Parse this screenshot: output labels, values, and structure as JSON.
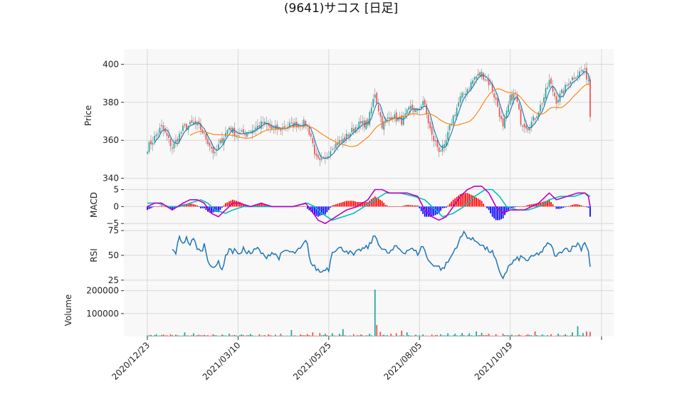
{
  "title": "(9641)サコス [日足]",
  "colors": {
    "up": "#26a69a",
    "down": "#ef5350",
    "ma_short": "#1f77b4",
    "ma_long": "#ff7f0e",
    "macd": "#c000c0",
    "signal": "#00c0c0",
    "hist_up": "#ff0000",
    "hist_down": "#0000ff",
    "rsi": "#1f77b4",
    "volume_up": "#26a69a",
    "volume_down": "#ef5350",
    "panel_bg": "#f8f8f8",
    "grid": "#d8d8d8"
  },
  "chart_data": {
    "type": "candlestick",
    "x_tick_labels": [
      "2020/12/23",
      "2021/03/10",
      "2021/05/25",
      "2021/08/05",
      "2021/10/19"
    ],
    "x_tick_index": [
      0,
      51,
      102,
      153,
      204
    ],
    "n_bars": 250,
    "price": {
      "ylabel": "Price",
      "ylim": [
        338,
        408
      ],
      "yticks": [
        340,
        360,
        380,
        400
      ],
      "anchors": [
        [
          0,
          356
        ],
        [
          3,
          360
        ],
        [
          8,
          367
        ],
        [
          12,
          360
        ],
        [
          14,
          356
        ],
        [
          20,
          366
        ],
        [
          26,
          369
        ],
        [
          30,
          366
        ],
        [
          36,
          356
        ],
        [
          38,
          352
        ],
        [
          40,
          357
        ],
        [
          46,
          367
        ],
        [
          50,
          363
        ],
        [
          55,
          364
        ],
        [
          60,
          366
        ],
        [
          65,
          369
        ],
        [
          70,
          366
        ],
        [
          75,
          366
        ],
        [
          80,
          368
        ],
        [
          89,
          369
        ],
        [
          92,
          362
        ],
        [
          95,
          350
        ],
        [
          97,
          348
        ],
        [
          100,
          350
        ],
        [
          104,
          357
        ],
        [
          110,
          360
        ],
        [
          118,
          368
        ],
        [
          124,
          369
        ],
        [
          128,
          385
        ],
        [
          132,
          368
        ],
        [
          137,
          373
        ],
        [
          143,
          370
        ],
        [
          148,
          377
        ],
        [
          152,
          375
        ],
        [
          155,
          381
        ],
        [
          160,
          362
        ],
        [
          164,
          355
        ],
        [
          167,
          356
        ],
        [
          171,
          370
        ],
        [
          176,
          382
        ],
        [
          180,
          387
        ],
        [
          184,
          393
        ],
        [
          188,
          395
        ],
        [
          193,
          389
        ],
        [
          197,
          378
        ],
        [
          200,
          366
        ],
        [
          204,
          382
        ],
        [
          207,
          384
        ],
        [
          210,
          370
        ],
        [
          214,
          367
        ],
        [
          218,
          372
        ],
        [
          222,
          380
        ],
        [
          226,
          391
        ],
        [
          230,
          381
        ],
        [
          234,
          386
        ],
        [
          238,
          392
        ],
        [
          242,
          395
        ],
        [
          245,
          397
        ],
        [
          248,
          392
        ],
        [
          249,
          373
        ]
      ]
    },
    "macd": {
      "ylabel": "MACD",
      "ylim": [
        -6,
        7
      ],
      "yticks": [
        -5,
        0,
        5
      ],
      "macd_anchors": [
        [
          0,
          0
        ],
        [
          4,
          1
        ],
        [
          8,
          1
        ],
        [
          14,
          -1
        ],
        [
          20,
          1
        ],
        [
          24,
          2
        ],
        [
          28,
          2
        ],
        [
          32,
          1
        ],
        [
          36,
          -2
        ],
        [
          40,
          -3
        ],
        [
          44,
          -1
        ],
        [
          48,
          1
        ],
        [
          52,
          1
        ],
        [
          58,
          0
        ],
        [
          64,
          1
        ],
        [
          70,
          0
        ],
        [
          76,
          0
        ],
        [
          82,
          0
        ],
        [
          89,
          1
        ],
        [
          92,
          -1
        ],
        [
          96,
          -4
        ],
        [
          100,
          -5
        ],
        [
          106,
          -3
        ],
        [
          112,
          -1
        ],
        [
          118,
          0
        ],
        [
          124,
          2
        ],
        [
          128,
          5
        ],
        [
          132,
          5
        ],
        [
          136,
          4
        ],
        [
          140,
          4
        ],
        [
          146,
          4
        ],
        [
          152,
          3
        ],
        [
          156,
          -1
        ],
        [
          160,
          -3
        ],
        [
          164,
          -4
        ],
        [
          168,
          -3
        ],
        [
          172,
          0
        ],
        [
          176,
          3
        ],
        [
          180,
          5
        ],
        [
          184,
          6
        ],
        [
          188,
          6
        ],
        [
          192,
          4
        ],
        [
          196,
          0
        ],
        [
          200,
          -2
        ],
        [
          204,
          -1
        ],
        [
          208,
          -1
        ],
        [
          212,
          -1
        ],
        [
          216,
          0
        ],
        [
          220,
          1
        ],
        [
          224,
          3
        ],
        [
          226,
          4
        ],
        [
          230,
          2
        ],
        [
          236,
          3
        ],
        [
          242,
          4
        ],
        [
          246,
          4
        ],
        [
          248,
          3
        ],
        [
          249,
          0
        ]
      ],
      "signal_anchors": [
        [
          0,
          1
        ],
        [
          6,
          1
        ],
        [
          12,
          0
        ],
        [
          18,
          0
        ],
        [
          24,
          1
        ],
        [
          30,
          2
        ],
        [
          34,
          1
        ],
        [
          38,
          -1
        ],
        [
          44,
          -2
        ],
        [
          48,
          -1
        ],
        [
          54,
          0
        ],
        [
          62,
          0
        ],
        [
          72,
          0
        ],
        [
          82,
          0
        ],
        [
          90,
          1
        ],
        [
          94,
          0
        ],
        [
          98,
          -2
        ],
        [
          104,
          -4
        ],
        [
          110,
          -3
        ],
        [
          116,
          -2
        ],
        [
          122,
          0
        ],
        [
          128,
          2
        ],
        [
          134,
          4
        ],
        [
          142,
          4
        ],
        [
          150,
          3
        ],
        [
          156,
          2
        ],
        [
          160,
          0
        ],
        [
          166,
          -3
        ],
        [
          172,
          -2
        ],
        [
          178,
          0
        ],
        [
          184,
          3
        ],
        [
          190,
          5
        ],
        [
          194,
          5
        ],
        [
          198,
          3
        ],
        [
          202,
          0
        ],
        [
          208,
          -1
        ],
        [
          214,
          -1
        ],
        [
          220,
          0
        ],
        [
          226,
          2
        ],
        [
          232,
          3
        ],
        [
          240,
          3
        ],
        [
          246,
          4
        ],
        [
          249,
          3
        ]
      ]
    },
    "rsi": {
      "ylabel": "RSI",
      "ylim": [
        22,
        78
      ],
      "yticks": [
        25,
        50,
        75
      ],
      "start_index": 14,
      "anchors": [
        [
          14,
          55
        ],
        [
          16,
          53
        ],
        [
          18,
          68
        ],
        [
          20,
          63
        ],
        [
          22,
          67
        ],
        [
          24,
          61
        ],
        [
          26,
          66
        ],
        [
          28,
          58
        ],
        [
          30,
          53
        ],
        [
          32,
          61
        ],
        [
          34,
          46
        ],
        [
          36,
          40
        ],
        [
          38,
          36
        ],
        [
          40,
          44
        ],
        [
          42,
          36
        ],
        [
          44,
          48
        ],
        [
          46,
          58
        ],
        [
          48,
          53
        ],
        [
          50,
          56
        ],
        [
          52,
          50
        ],
        [
          54,
          56
        ],
        [
          58,
          52
        ],
        [
          62,
          57
        ],
        [
          66,
          48
        ],
        [
          70,
          53
        ],
        [
          74,
          48
        ],
        [
          78,
          55
        ],
        [
          82,
          52
        ],
        [
          86,
          56
        ],
        [
          89,
          64
        ],
        [
          90,
          60
        ],
        [
          92,
          42
        ],
        [
          94,
          38
        ],
        [
          96,
          35
        ],
        [
          98,
          33
        ],
        [
          100,
          37
        ],
        [
          102,
          36
        ],
        [
          104,
          55
        ],
        [
          108,
          57
        ],
        [
          112,
          55
        ],
        [
          116,
          50
        ],
        [
          120,
          56
        ],
        [
          124,
          58
        ],
        [
          128,
          70
        ],
        [
          132,
          56
        ],
        [
          136,
          52
        ],
        [
          140,
          59
        ],
        [
          144,
          53
        ],
        [
          148,
          57
        ],
        [
          152,
          52
        ],
        [
          155,
          60
        ],
        [
          158,
          44
        ],
        [
          162,
          40
        ],
        [
          166,
          36
        ],
        [
          170,
          46
        ],
        [
          174,
          60
        ],
        [
          178,
          73
        ],
        [
          182,
          66
        ],
        [
          186,
          64
        ],
        [
          190,
          57
        ],
        [
          194,
          53
        ],
        [
          196,
          44
        ],
        [
          198,
          32
        ],
        [
          200,
          28
        ],
        [
          203,
          38
        ],
        [
          206,
          44
        ],
        [
          210,
          48
        ],
        [
          214,
          45
        ],
        [
          218,
          50
        ],
        [
          222,
          54
        ],
        [
          226,
          63
        ],
        [
          230,
          48
        ],
        [
          234,
          57
        ],
        [
          238,
          56
        ],
        [
          242,
          62
        ],
        [
          244,
          57
        ],
        [
          246,
          64
        ],
        [
          248,
          55
        ],
        [
          249,
          38
        ]
      ]
    },
    "volume": {
      "ylabel": "Volume",
      "ylim": [
        0,
        230000
      ],
      "yticks": [
        100000,
        200000
      ],
      "base": 4000,
      "spikes": [
        [
          2,
          7000
        ],
        [
          5,
          10000
        ],
        [
          9,
          9000
        ],
        [
          13,
          9000
        ],
        [
          16,
          8000
        ],
        [
          21,
          18000
        ],
        [
          26,
          14000
        ],
        [
          29,
          8000
        ],
        [
          32,
          7000
        ],
        [
          37,
          10000
        ],
        [
          42,
          9000
        ],
        [
          46,
          12000
        ],
        [
          49,
          7000
        ],
        [
          53,
          9000
        ],
        [
          58,
          11000
        ],
        [
          63,
          10000
        ],
        [
          68,
          9000
        ],
        [
          72,
          8000
        ],
        [
          75,
          12000
        ],
        [
          81,
          28000
        ],
        [
          86,
          9000
        ],
        [
          90,
          10000
        ],
        [
          93,
          18000
        ],
        [
          97,
          15000
        ],
        [
          100,
          12000
        ],
        [
          104,
          14000
        ],
        [
          108,
          12000
        ],
        [
          110,
          32000
        ],
        [
          116,
          10000
        ],
        [
          120,
          9000
        ],
        [
          125,
          12000
        ],
        [
          128,
          205000
        ],
        [
          129,
          50000
        ],
        [
          131,
          20000
        ],
        [
          133,
          8000
        ],
        [
          137,
          12000
        ],
        [
          140,
          14000
        ],
        [
          143,
          25000
        ],
        [
          146,
          18000
        ],
        [
          151,
          8000
        ],
        [
          155,
          9000
        ],
        [
          160,
          8000
        ],
        [
          165,
          10000
        ],
        [
          169,
          14000
        ],
        [
          173,
          12000
        ],
        [
          177,
          15000
        ],
        [
          181,
          14000
        ],
        [
          185,
          22000
        ],
        [
          188,
          16000
        ],
        [
          192,
          12000
        ],
        [
          196,
          10000
        ],
        [
          200,
          12000
        ],
        [
          205,
          8000
        ],
        [
          209,
          9000
        ],
        [
          214,
          10000
        ],
        [
          218,
          22000
        ],
        [
          222,
          9000
        ],
        [
          227,
          10000
        ],
        [
          231,
          12000
        ],
        [
          235,
          10000
        ],
        [
          239,
          18000
        ],
        [
          242,
          45000
        ],
        [
          245,
          15000
        ],
        [
          247,
          22000
        ],
        [
          249,
          20000
        ]
      ]
    }
  }
}
